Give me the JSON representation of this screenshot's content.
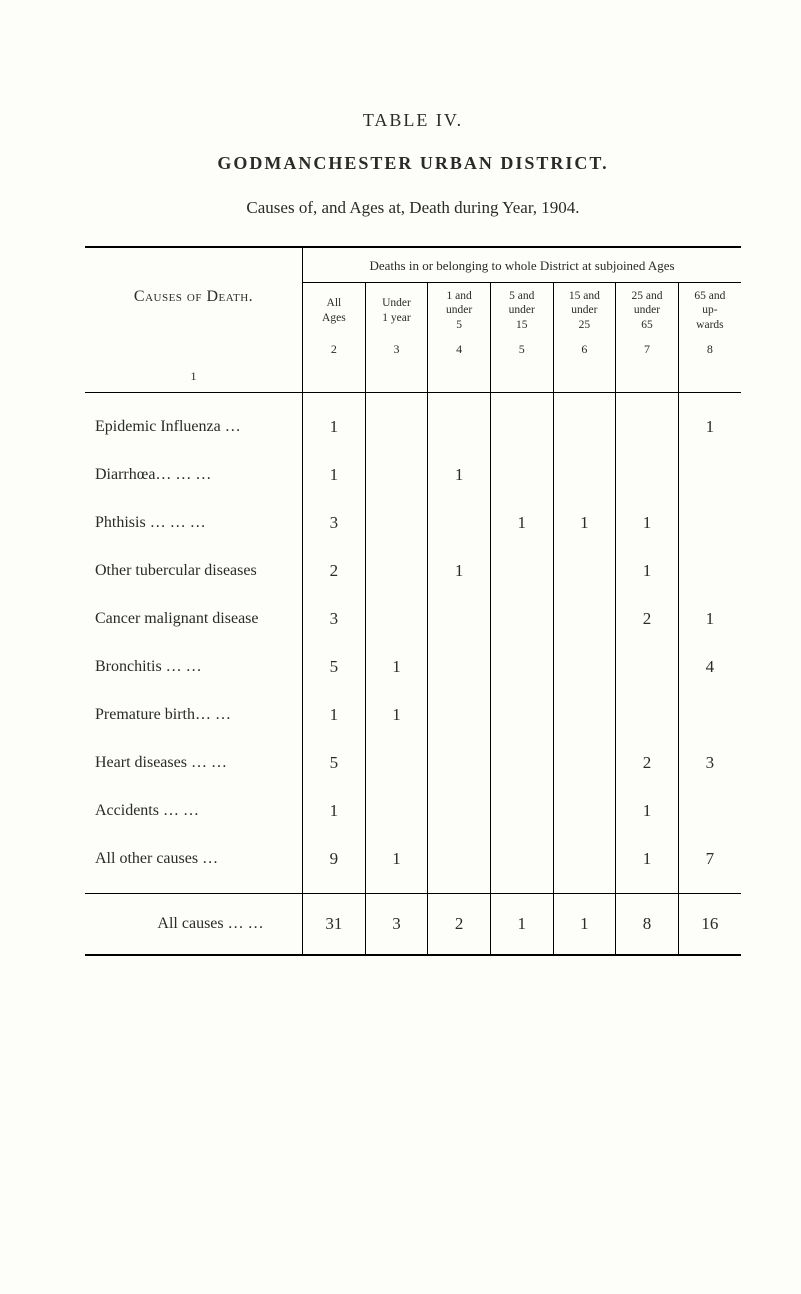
{
  "table_number": "TABLE  IV.",
  "district_title": "GODMANCHESTER  URBAN  DISTRICT.",
  "caption": "Causes of, and Ages at, Death during Year, 1904.",
  "span_header": "Deaths in or belonging to whole District at subjoined Ages",
  "row_header": "Causes of Death.",
  "columns": [
    {
      "label_lines": [
        "All",
        "Ages"
      ],
      "num": "2"
    },
    {
      "label_lines": [
        "Under",
        "1 year"
      ],
      "num": "3"
    },
    {
      "label_lines": [
        "1 and",
        "under",
        "5"
      ],
      "num": "4"
    },
    {
      "label_lines": [
        "5 and",
        "under",
        "15"
      ],
      "num": "5"
    },
    {
      "label_lines": [
        "15 and",
        "under",
        "25"
      ],
      "num": "6"
    },
    {
      "label_lines": [
        "25 and",
        "under",
        "65"
      ],
      "num": "7"
    },
    {
      "label_lines": [
        "65 and",
        "up-",
        "wards"
      ],
      "num": "8"
    }
  ],
  "row_col_num": "1",
  "rows": [
    {
      "label": "Epidemic  Influenza    …",
      "v": [
        "1",
        "",
        "",
        "",
        "",
        "",
        "1"
      ]
    },
    {
      "label": "Diarrhœa…        …      …",
      "v": [
        "1",
        "",
        "1",
        "",
        "",
        "",
        ""
      ]
    },
    {
      "label": "Phthisis …        …       …",
      "v": [
        "3",
        "",
        "",
        "1",
        "1",
        "1",
        ""
      ]
    },
    {
      "label": "Other tubercular diseases",
      "v": [
        "2",
        "",
        "1",
        "",
        "",
        "1",
        ""
      ]
    },
    {
      "label": "Cancer malignant disease",
      "v": [
        "3",
        "",
        "",
        "",
        "",
        "2",
        "1"
      ]
    },
    {
      "label": "Bronchitis          …      …",
      "v": [
        "5",
        "1",
        "",
        "",
        "",
        "",
        "4"
      ]
    },
    {
      "label": "Premature birth…      …",
      "v": [
        "1",
        "1",
        "",
        "",
        "",
        "",
        ""
      ]
    },
    {
      "label": "Heart diseases  …      …",
      "v": [
        "5",
        "",
        "",
        "",
        "",
        "2",
        "3"
      ]
    },
    {
      "label": "Accidents          …      …",
      "v": [
        "1",
        "",
        "",
        "",
        "",
        "1",
        ""
      ]
    },
    {
      "label": "All other causes        …",
      "v": [
        "9",
        "1",
        "",
        "",
        "",
        "1",
        "7"
      ]
    }
  ],
  "total": {
    "label": "All causes …      …",
    "v": [
      "31",
      "3",
      "2",
      "1",
      "1",
      "8",
      "16"
    ]
  }
}
